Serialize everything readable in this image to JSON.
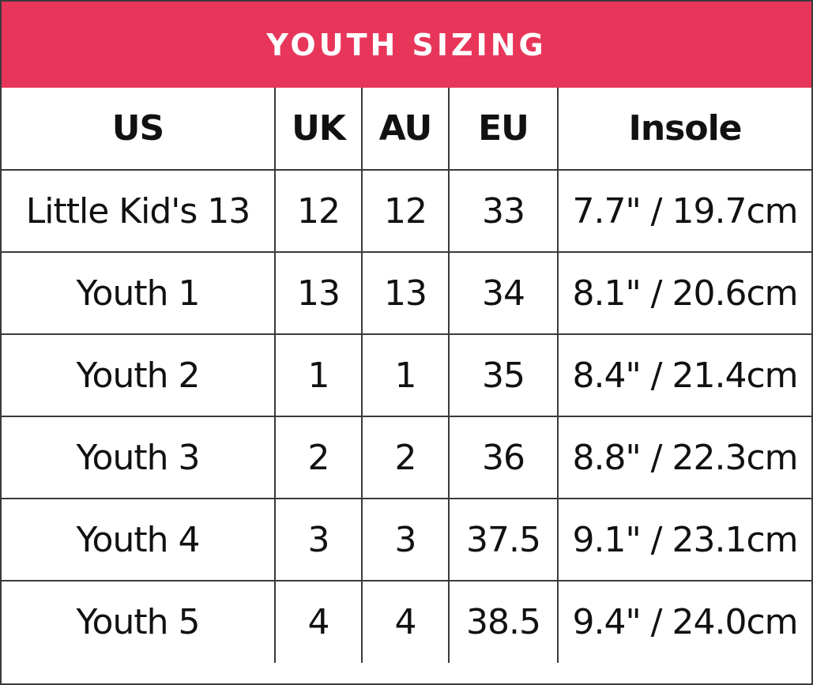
{
  "title": "YOUTH SIZING",
  "colors": {
    "header_bg": "#e8365a",
    "header_text": "#ffffff",
    "grid_line": "#3a3a3a",
    "body_text": "#111111"
  },
  "table": {
    "columns": [
      "US",
      "UK",
      "AU",
      "EU",
      "Insole"
    ],
    "rows": [
      [
        "Little Kid's 13",
        "12",
        "12",
        "33",
        "7.7\" / 19.7cm"
      ],
      [
        "Youth 1",
        "13",
        "13",
        "34",
        "8.1\" / 20.6cm"
      ],
      [
        "Youth 2",
        "1",
        "1",
        "35",
        "8.4\" / 21.4cm"
      ],
      [
        "Youth 3",
        "2",
        "2",
        "36",
        "8.8\" / 22.3cm"
      ],
      [
        "Youth 4",
        "3",
        "3",
        "37.5",
        "9.1\" / 23.1cm"
      ],
      [
        "Youth 5",
        "4",
        "4",
        "38.5",
        "9.4\" / 24.0cm"
      ]
    ]
  }
}
